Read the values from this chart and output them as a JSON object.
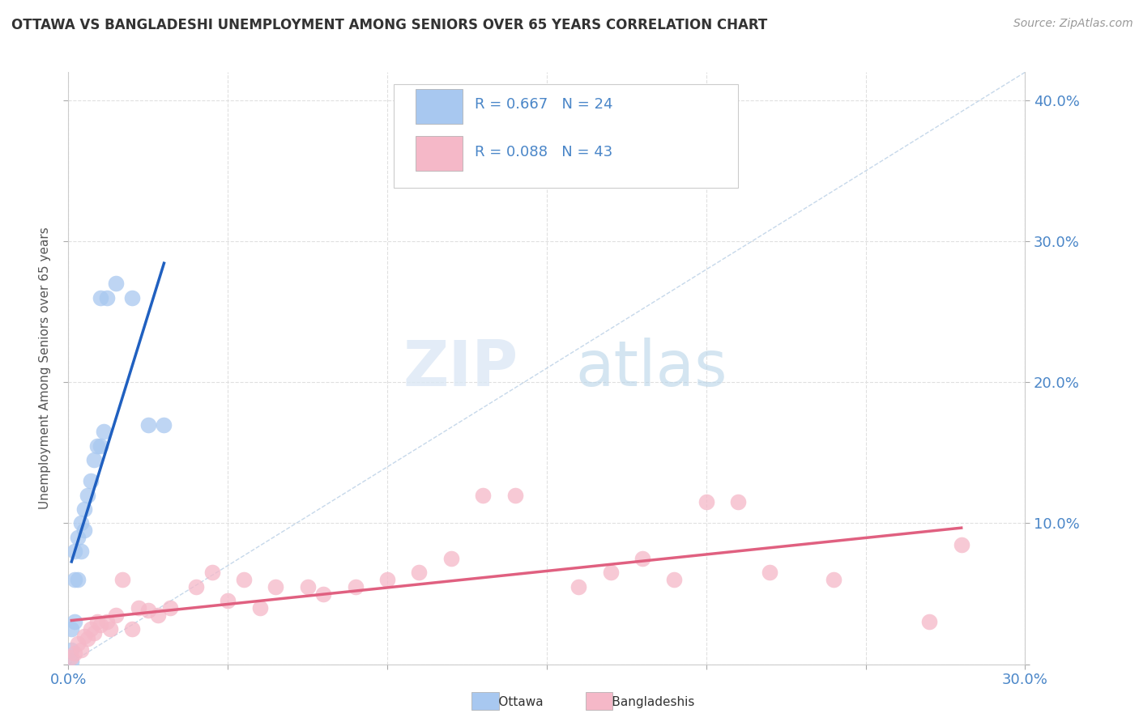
{
  "title": "OTTAWA VS BANGLADESHI UNEMPLOYMENT AMONG SENIORS OVER 65 YEARS CORRELATION CHART",
  "source": "Source: ZipAtlas.com",
  "ylabel": "Unemployment Among Seniors over 65 years",
  "xlim": [
    0.0,
    0.3
  ],
  "ylim": [
    0.0,
    0.42
  ],
  "xticks": [
    0.0,
    0.05,
    0.1,
    0.15,
    0.2,
    0.25,
    0.3
  ],
  "yticks": [
    0.0,
    0.1,
    0.2,
    0.3,
    0.4
  ],
  "ottawa_color": "#a8c8f0",
  "bangladeshi_color": "#f5b8c8",
  "ottawa_line_color": "#2060c0",
  "bangladeshi_line_color": "#e06080",
  "ref_line_color": "#c0d4e8",
  "watermark_zip": "ZIP",
  "watermark_atlas": "atlas",
  "legend_R_ottawa": "R = 0.667",
  "legend_N_ottawa": "N = 24",
  "legend_R_bangladeshi": "R = 0.088",
  "legend_N_bangladeshi": "N = 43",
  "ottawa_x": [
    0.001,
    0.001,
    0.001,
    0.002,
    0.002,
    0.002,
    0.003,
    0.003,
    0.004,
    0.004,
    0.005,
    0.005,
    0.006,
    0.007,
    0.008,
    0.009,
    0.01,
    0.01,
    0.011,
    0.012,
    0.015,
    0.02,
    0.025,
    0.03
  ],
  "ottawa_y": [
    0.002,
    0.01,
    0.025,
    0.03,
    0.06,
    0.08,
    0.06,
    0.09,
    0.08,
    0.1,
    0.095,
    0.11,
    0.12,
    0.13,
    0.145,
    0.155,
    0.155,
    0.26,
    0.165,
    0.26,
    0.27,
    0.26,
    0.17,
    0.17
  ],
  "bangladeshi_x": [
    0.001,
    0.002,
    0.003,
    0.004,
    0.005,
    0.006,
    0.007,
    0.008,
    0.009,
    0.01,
    0.012,
    0.013,
    0.015,
    0.017,
    0.02,
    0.022,
    0.025,
    0.028,
    0.032,
    0.04,
    0.045,
    0.05,
    0.055,
    0.06,
    0.065,
    0.075,
    0.08,
    0.09,
    0.1,
    0.11,
    0.12,
    0.13,
    0.14,
    0.16,
    0.17,
    0.18,
    0.19,
    0.2,
    0.21,
    0.22,
    0.24,
    0.27,
    0.28
  ],
  "bangladeshi_y": [
    0.005,
    0.008,
    0.015,
    0.01,
    0.02,
    0.018,
    0.025,
    0.022,
    0.03,
    0.028,
    0.03,
    0.025,
    0.035,
    0.06,
    0.025,
    0.04,
    0.038,
    0.035,
    0.04,
    0.055,
    0.065,
    0.045,
    0.06,
    0.04,
    0.055,
    0.055,
    0.05,
    0.055,
    0.06,
    0.065,
    0.075,
    0.12,
    0.12,
    0.055,
    0.065,
    0.075,
    0.06,
    0.115,
    0.115,
    0.065,
    0.06,
    0.03,
    0.085
  ],
  "title_color": "#333333",
  "axis_color": "#4a86c8",
  "background_color": "#ffffff",
  "grid_color": "#e0e0e0"
}
